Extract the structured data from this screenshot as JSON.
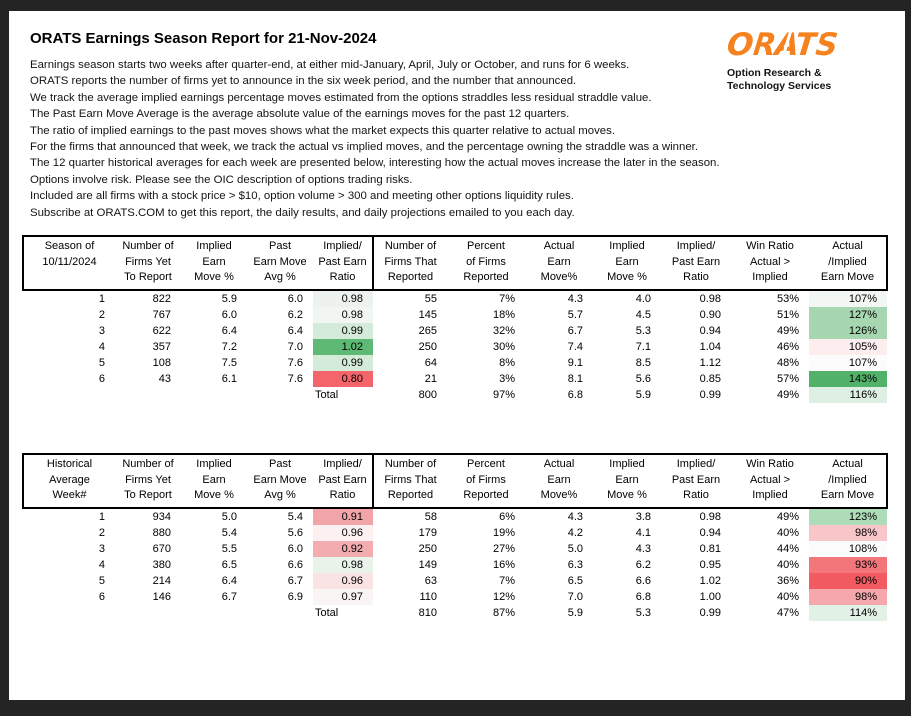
{
  "report": {
    "title": "ORATS Earnings Season Report for 21-Nov-2024",
    "intro_lines": [
      "Earnings season starts two weeks after quarter-end, at either mid-January, April, July or October, and runs for 6 weeks.",
      "ORATS reports the number of firms yet to announce in the six week period, and the number that announced.",
      "We track the average implied earnings percentage moves estimated from the options straddles less residual straddle value.",
      "The Past Earn Move Average is the average absolute value of the earnings moves for the past 12 quarters.",
      "The ratio of implied earnings to the past moves shows what the market expects this quarter relative to actual moves.",
      "For the firms that announced that week, we track the actual vs implied moves, and the percentage owning the straddle was a winner.",
      "The 12 quarter historical averages for each week are presented below, interesting how the actual moves increase the later in the season.",
      "Options involve risk. Please see the OIC description of options trading risks.",
      "Included are all firms with a stock price > $10, option volume > 300 and meeting other options liquidity rules.",
      "Subscribe at ORATS.COM to get this report, the daily results, and daily projections emailed to you each day."
    ],
    "logo": {
      "wordmark": "ORATS",
      "subtitle_line1": "Option Research &",
      "subtitle_line2": "Technology Services",
      "color": "#F5821F"
    }
  },
  "tables": [
    {
      "name": "current-season",
      "headers": [
        "Season of\n10/11/2024",
        "Number of\nFirms Yet\nTo Report",
        "Implied\nEarn\nMove %",
        "Past\nEarn Move\nAvg %",
        "Implied/\nPast Earn\nRatio",
        "Number of\nFirms That\nReported",
        "Percent\nof Firms\nReported",
        "Actual\nEarn\nMove%",
        "Implied\nEarn\nMove %",
        "Implied/\nPast Earn\nRatio",
        "Win Ratio\nActual >\nImplied",
        "Actual\n/Implied\nEarn Move"
      ],
      "rows": [
        {
          "cells": [
            "1",
            "822",
            "5.9",
            "6.0",
            "0.98",
            "55",
            "7%",
            "4.3",
            "4.0",
            "0.98",
            "53%",
            "107%"
          ],
          "highlights": {
            "4": "#EDF2EE",
            "11": "#F2F7F3"
          }
        },
        {
          "cells": [
            "2",
            "767",
            "6.0",
            "6.2",
            "0.98",
            "145",
            "18%",
            "5.7",
            "4.5",
            "0.90",
            "51%",
            "127%"
          ],
          "highlights": {
            "4": "#F2F6F2",
            "11": "#A6D7B1"
          }
        },
        {
          "cells": [
            "3",
            "622",
            "6.4",
            "6.4",
            "0.99",
            "265",
            "32%",
            "6.7",
            "5.3",
            "0.94",
            "49%",
            "126%"
          ],
          "highlights": {
            "4": "#D5EBDA",
            "11": "#A6D7B1"
          }
        },
        {
          "cells": [
            "4",
            "357",
            "7.2",
            "7.0",
            "1.02",
            "250",
            "30%",
            "7.4",
            "7.1",
            "1.04",
            "46%",
            "105%"
          ],
          "highlights": {
            "4": "#5EB974",
            "11": "#FCEDEF"
          }
        },
        {
          "cells": [
            "5",
            "108",
            "7.5",
            "7.6",
            "0.99",
            "64",
            "8%",
            "9.1",
            "8.5",
            "1.12",
            "48%",
            "107%"
          ],
          "highlights": {
            "4": "#D5EBDA",
            "11": "#FBFCFB"
          }
        },
        {
          "cells": [
            "6",
            "43",
            "6.1",
            "7.6",
            "0.80",
            "21",
            "3%",
            "8.1",
            "5.6",
            "0.85",
            "57%",
            "143%"
          ],
          "highlights": {
            "4": "#F4656B",
            "11": "#52B26A"
          }
        }
      ],
      "total": {
        "cells": [
          "",
          "",
          "",
          "",
          "Total",
          "800",
          "97%",
          "6.8",
          "5.9",
          "0.99",
          "49%",
          "116%"
        ],
        "highlights": {
          "11": "#DEEFE3"
        }
      }
    },
    {
      "name": "historical-average",
      "headers": [
        "Historical\nAverage\nWeek#",
        "Number of\nFirms Yet\nTo Report",
        "Implied\nEarn\nMove %",
        "Past\nEarn Move\nAvg %",
        "Implied/\nPast Earn\nRatio",
        "Number of\nFirms That\nReported",
        "Percent\nof Firms\nReported",
        "Actual\nEarn\nMove%",
        "Implied\nEarn\nMove %",
        "Implied/\nPast Earn\nRatio",
        "Win Ratio\nActual >\nImplied",
        "Actual\n/Implied\nEarn Move"
      ],
      "rows": [
        {
          "cells": [
            "1",
            "934",
            "5.0",
            "5.4",
            "0.91",
            "58",
            "6%",
            "4.3",
            "3.8",
            "0.98",
            "49%",
            "123%"
          ],
          "highlights": {
            "4": "#F2A5A9",
            "11": "#AEDBB8"
          }
        },
        {
          "cells": [
            "2",
            "880",
            "5.4",
            "5.6",
            "0.96",
            "179",
            "19%",
            "4.2",
            "4.1",
            "0.94",
            "40%",
            "98%"
          ],
          "highlights": {
            "4": "#FCF0F1",
            "11": "#F8C6C9"
          }
        },
        {
          "cells": [
            "3",
            "670",
            "5.5",
            "6.0",
            "0.92",
            "250",
            "27%",
            "5.0",
            "4.3",
            "0.81",
            "44%",
            "108%"
          ],
          "highlights": {
            "4": "#F3ACAF",
            "11": "#FCFCFC"
          }
        },
        {
          "cells": [
            "4",
            "380",
            "6.5",
            "6.6",
            "0.98",
            "149",
            "16%",
            "6.3",
            "6.2",
            "0.95",
            "40%",
            "93%"
          ],
          "highlights": {
            "4": "#E8F3EA",
            "11": "#F3767B"
          }
        },
        {
          "cells": [
            "5",
            "214",
            "6.4",
            "6.7",
            "0.96",
            "63",
            "7%",
            "6.5",
            "6.6",
            "1.02",
            "36%",
            "90%"
          ],
          "highlights": {
            "4": "#FAE3E5",
            "11": "#F05A60"
          }
        },
        {
          "cells": [
            "6",
            "146",
            "6.7",
            "6.9",
            "0.97",
            "110",
            "12%",
            "7.0",
            "6.8",
            "1.00",
            "40%",
            "98%"
          ],
          "highlights": {
            "4": "#FAF5F5",
            "11": "#F5A7AB"
          }
        }
      ],
      "total": {
        "cells": [
          "",
          "",
          "",
          "",
          "Total",
          "810",
          "87%",
          "5.9",
          "5.3",
          "0.99",
          "47%",
          "114%"
        ],
        "highlights": {
          "11": "#E2F1E6"
        }
      }
    }
  ]
}
